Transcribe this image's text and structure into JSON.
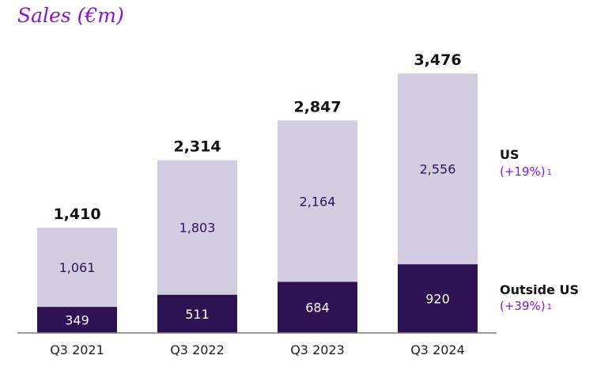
{
  "chart_data": {
    "type": "bar",
    "stacked": true,
    "title": "Sales (€m)",
    "xlabel": "",
    "ylabel": "",
    "ylim": [
      0,
      3476
    ],
    "grid": false,
    "categories": [
      "Q3 2021",
      "Q3 2022",
      "Q3 2023",
      "Q3 2024"
    ],
    "series": [
      {
        "name": "Outside US",
        "growth": "(+39%)",
        "footnote": "1",
        "color": "#2d1254",
        "values": [
          349,
          511,
          684,
          920
        ]
      },
      {
        "name": "US",
        "growth": "(+19%)",
        "footnote": "1",
        "color": "#d2cde0",
        "values": [
          1061,
          1803,
          2164,
          2556
        ]
      }
    ],
    "totals": [
      1410,
      2314,
      2847,
      3476
    ],
    "total_labels": [
      "1,410",
      "2,314",
      "2,847",
      "3,476"
    ],
    "segment_labels": {
      "Outside US": [
        "349",
        "511",
        "684",
        "920"
      ],
      "US": [
        "1,061",
        "1,803",
        "2,164",
        "2,556"
      ]
    },
    "legend_placement": "right"
  }
}
